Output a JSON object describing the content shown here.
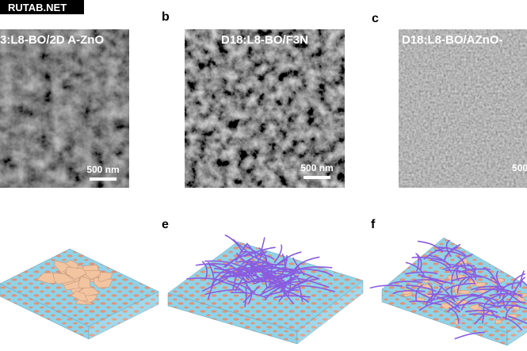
{
  "watermark": "RUTAB.NET",
  "micrographs": [
    {
      "title": "3:L8-BO/2D A-ZnO",
      "scale_bar": "500 nm"
    },
    {
      "label": "b",
      "title": "D18:L8-BO/F3N",
      "scale_bar": "500 nm"
    },
    {
      "label": "c",
      "title": "D18:L8-BO/AZnO-",
      "scale_bar": "500"
    }
  ],
  "schematics": [
    {
      "label": "e"
    },
    {
      "label": "f"
    }
  ]
}
